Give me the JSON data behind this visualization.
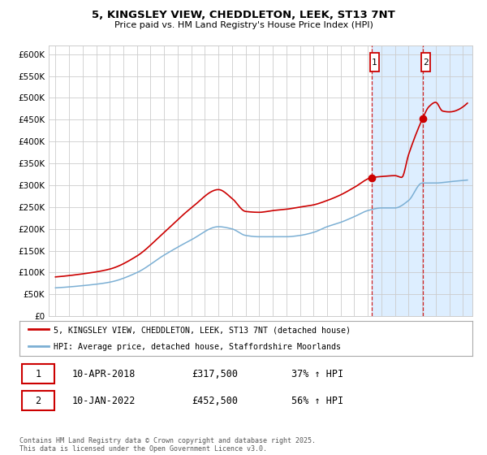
{
  "title": "5, KINGSLEY VIEW, CHEDDLETON, LEEK, ST13 7NT",
  "subtitle": "Price paid vs. HM Land Registry's House Price Index (HPI)",
  "legend_line1": "5, KINGSLEY VIEW, CHEDDLETON, LEEK, ST13 7NT (detached house)",
  "legend_line2": "HPI: Average price, detached house, Staffordshire Moorlands",
  "sale1_label": "1",
  "sale1_date": "10-APR-2018",
  "sale1_price": "£317,500",
  "sale1_hpi": "37% ↑ HPI",
  "sale2_label": "2",
  "sale2_date": "10-JAN-2022",
  "sale2_price": "£452,500",
  "sale2_hpi": "56% ↑ HPI",
  "sale1_year": 2018.28,
  "sale2_year": 2022.03,
  "sale1_value": 317500,
  "sale2_value": 452500,
  "footer": "Contains HM Land Registry data © Crown copyright and database right 2025.\nThis data is licensed under the Open Government Licence v3.0.",
  "line_color_red": "#cc0000",
  "line_color_blue": "#7bafd4",
  "shade_color": "#ddeeff",
  "background_color": "#ffffff",
  "grid_color": "#cccccc",
  "ylim": [
    0,
    620000
  ],
  "yticks": [
    0,
    50000,
    100000,
    150000,
    200000,
    250000,
    300000,
    350000,
    400000,
    450000,
    500000,
    550000,
    600000
  ],
  "xlim_start": 1994.5,
  "xlim_end": 2025.7
}
